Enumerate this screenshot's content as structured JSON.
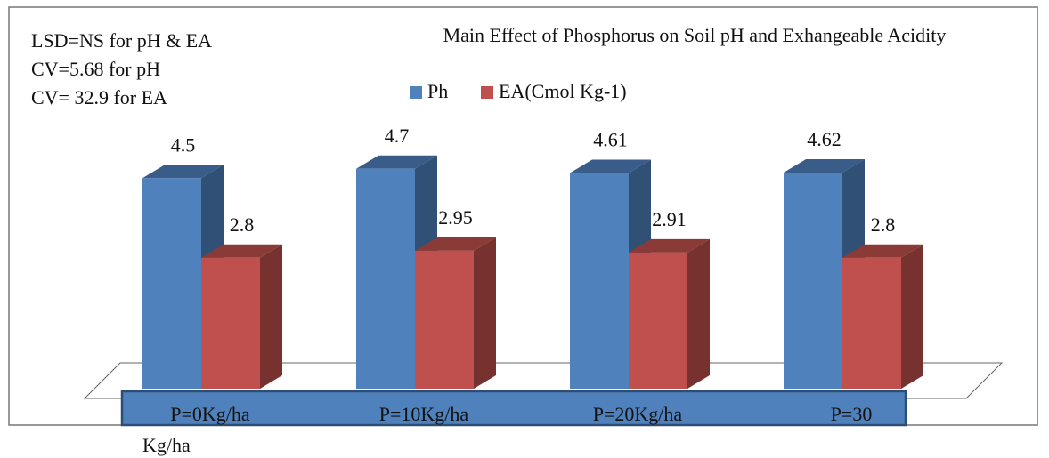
{
  "chart_data": {
    "type": "bar3d",
    "title": "Main Effect of Phosphorus on Soil pH and Exhangeable Acidity",
    "annotations": [
      "LSD=NS for pH & EA",
      "CV=5.68 for pH",
      "CV= 32.9 for EA",
      "Kg/ha"
    ],
    "categories": [
      "P=0Kg/ha",
      "P=10Kg/ha",
      "P=20Kg/ha",
      "P=30"
    ],
    "series": [
      {
        "name": "Ph",
        "color": "#4f81bd",
        "values": [
          4.5,
          4.7,
          4.61,
          4.62
        ]
      },
      {
        "name": "EA(Cmol Kg-1)",
        "color": "#c0504d",
        "values": [
          2.8,
          2.95,
          2.91,
          2.8
        ]
      }
    ]
  }
}
